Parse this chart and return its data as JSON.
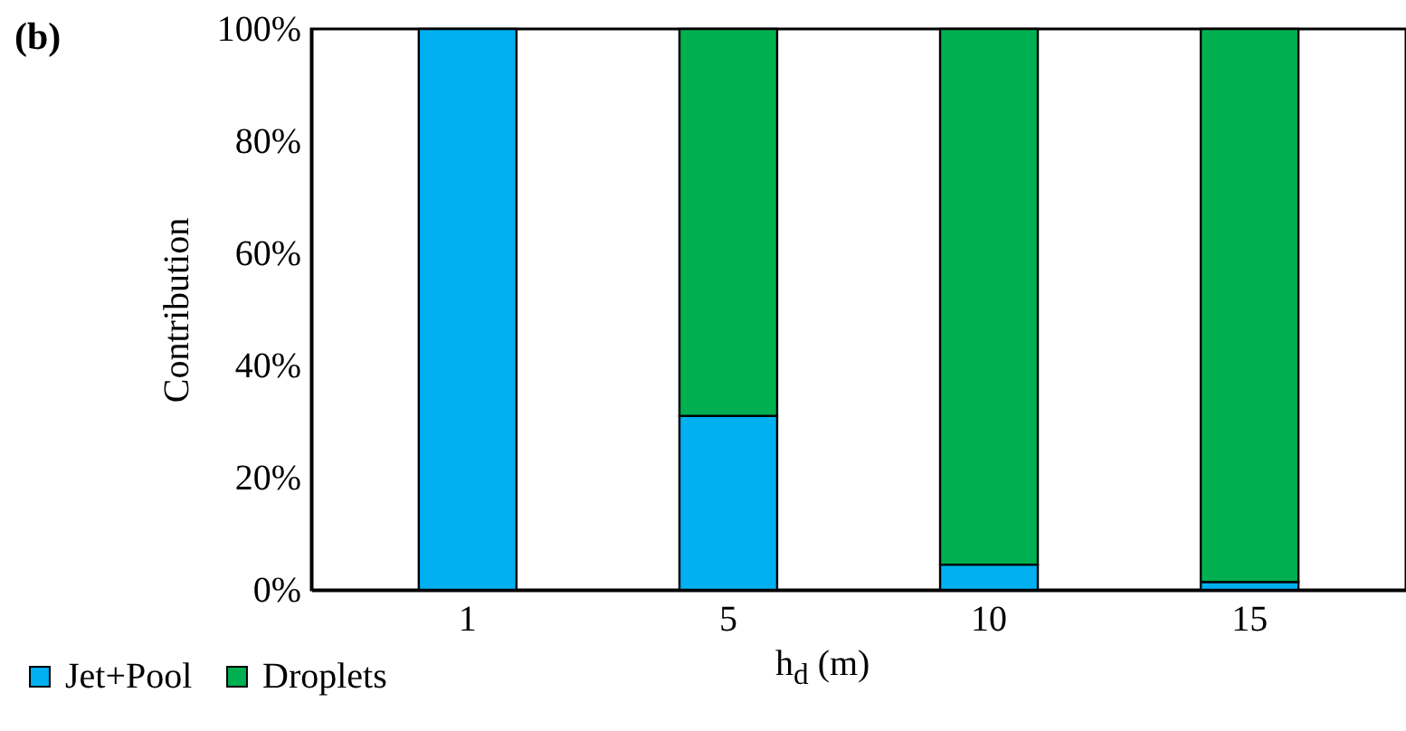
{
  "chart_data": {
    "type": "bar",
    "title": "(b)",
    "xlabel": "h$_{d}$ (m)",
    "ylabel": "Contribution",
    "categories": [
      "1",
      "5",
      "10",
      "15"
    ],
    "stacked": true,
    "series": [
      {
        "name": "Jet+Pool",
        "color": "#00b0f0",
        "values": [
          100,
          31,
          4.5,
          1.4
        ]
      },
      {
        "name": "Droplets",
        "color": "#00b050",
        "values": [
          null,
          69,
          95.5,
          98.6
        ]
      }
    ],
    "ylim": [
      0,
      100
    ],
    "yticks": [
      {
        "value": 0,
        "label": "0%"
      },
      {
        "value": 20,
        "label": "20%"
      },
      {
        "value": 40,
        "label": "40%"
      },
      {
        "value": 60,
        "label": "60%"
      },
      {
        "value": 80,
        "label": "80%"
      },
      {
        "value": 100,
        "label": "100%"
      }
    ],
    "grid": false,
    "legend": "bottom left"
  }
}
